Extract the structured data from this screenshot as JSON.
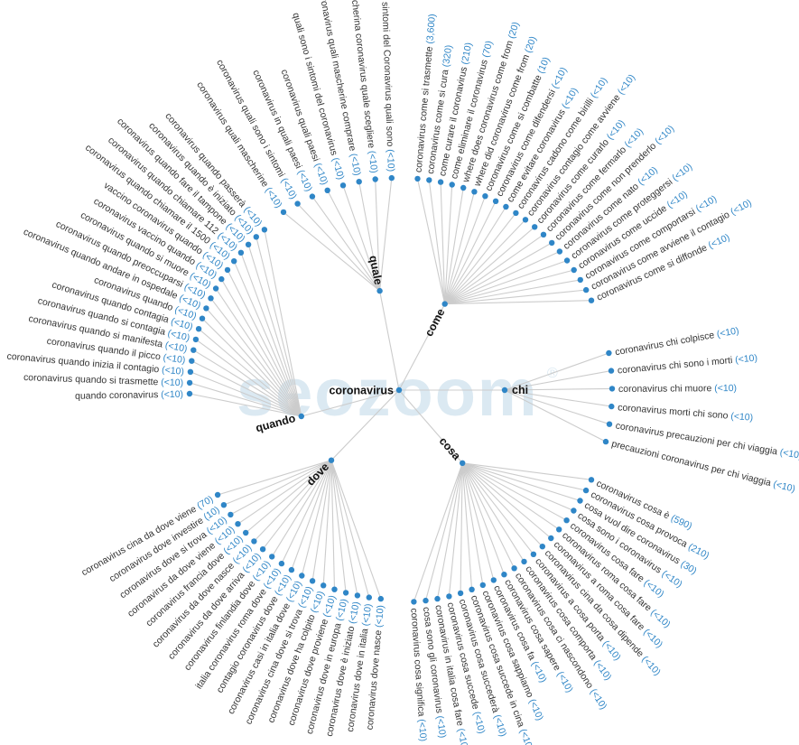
{
  "watermark": "seozoom",
  "watermark_mark": "®",
  "colors": {
    "link": "#cccccc",
    "node": "#2f86c7",
    "count": "#2f86c7",
    "text": "#333333"
  },
  "root": {
    "label": "coronavirus"
  },
  "branches": [
    {
      "key": "quale",
      "label": "quale",
      "leaves": [
        {
          "text": "i sintomi del Coronavirus quali sono",
          "count": "(<10)"
        },
        {
          "text": "mascherina coronavirus quale scegliere",
          "count": "(<10)"
        },
        {
          "text": "coronavirus quali mascherine comprare",
          "count": "(<10)"
        },
        {
          "text": "quali sono i sintomi del coronavirus",
          "count": "(<10)"
        },
        {
          "text": "coronavirus quali paesi",
          "count": "(<10)"
        },
        {
          "text": "coronavirus in quali paesi",
          "count": "(<10)"
        },
        {
          "text": "coronavirus quali sono i sintomi",
          "count": "(<10)"
        },
        {
          "text": "coronavirus quali mascherine",
          "count": "(<10)"
        }
      ]
    },
    {
      "key": "come",
      "label": "come",
      "leaves": [
        {
          "text": "coronavirus come si trasmette",
          "count": "(3,600)"
        },
        {
          "text": "coronavirus come si cura",
          "count": "(320)"
        },
        {
          "text": "come curare il coronavirus",
          "count": "(210)"
        },
        {
          "text": "come eliminare il coronavirus",
          "count": "(70)"
        },
        {
          "text": "where does coronavirus come from",
          "count": "(20)"
        },
        {
          "text": "where did coronavirus come from",
          "count": "(20)"
        },
        {
          "text": "coronavirus come si combatte",
          "count": "(10)"
        },
        {
          "text": "coronavirus come difendersi",
          "count": "(<10)"
        },
        {
          "text": "come evitare coronavirus",
          "count": "(<10)"
        },
        {
          "text": "coronavirus cadono come birilli",
          "count": "(<10)"
        },
        {
          "text": "coronavirus contagio come avviene",
          "count": "(<10)"
        },
        {
          "text": "coronavirus come curarlo",
          "count": "(<10)"
        },
        {
          "text": "coronavirus come fermarlo",
          "count": "(<10)"
        },
        {
          "text": "coronavirus come non prenderlo",
          "count": "(<10)"
        },
        {
          "text": "coronavirus come nato",
          "count": "(<10)"
        },
        {
          "text": "coronavirus come proteggersi",
          "count": "(<10)"
        },
        {
          "text": "coronavirus come uccide",
          "count": "(<10)"
        },
        {
          "text": "coronavirus come comportarsi",
          "count": "(<10)"
        },
        {
          "text": "coronavirus come avviene il contagio",
          "count": "(<10)"
        },
        {
          "text": "coronavirus come si diffonde",
          "count": "(<10)"
        }
      ]
    },
    {
      "key": "chi",
      "label": "chi",
      "leaves": [
        {
          "text": "coronavirus chi colpisce",
          "count": "(<10)"
        },
        {
          "text": "coronavirus chi sono i morti",
          "count": "(<10)"
        },
        {
          "text": "coronavirus chi muore",
          "count": "(<10)"
        },
        {
          "text": "coronavirus morti chi sono",
          "count": "(<10)"
        },
        {
          "text": "coronavirus precauzioni per chi viaggia",
          "count": "(<10)"
        },
        {
          "text": "precauzioni coronavirus per chi viaggia",
          "count": "(<10)"
        }
      ]
    },
    {
      "key": "cosa",
      "label": "cosa",
      "leaves": [
        {
          "text": "coronavirus cosa è",
          "count": "(590)"
        },
        {
          "text": "coronavirus cosa provoca",
          "count": "(210)"
        },
        {
          "text": "cosa vuol dire coronavirus",
          "count": "(30)"
        },
        {
          "text": "cosa sono i coronavirus",
          "count": "(<10)"
        },
        {
          "text": "coronavirus cosa fare",
          "count": "(<10)"
        },
        {
          "text": "coronavirus roma cosa fare",
          "count": "(<10)"
        },
        {
          "text": "coronavirus a roma cosa fare",
          "count": "(<10)"
        },
        {
          "text": "coronavirus cina da cosa dipende",
          "count": "(<10)"
        },
        {
          "text": "coronavirus a cosa porta",
          "count": "(<10)"
        },
        {
          "text": "coronavirus cosa comporta",
          "count": "(<10)"
        },
        {
          "text": "coronavirus cosa ci nascondono",
          "count": "(<10)"
        },
        {
          "text": "coronavirus cosa sapere",
          "count": "(<10)"
        },
        {
          "text": "coronavirus cosa fa",
          "count": "(<10)"
        },
        {
          "text": "coronavirus cosa sappiamo",
          "count": "(<10)"
        },
        {
          "text": "coronavirus cosa succede in cina",
          "count": "(<10)"
        },
        {
          "text": "coronavirus cosa succederà",
          "count": "(<10)"
        },
        {
          "text": "coronavirus cosa succede",
          "count": "(<10)"
        },
        {
          "text": "coronavirus in italia cosa fare",
          "count": "(<10)"
        },
        {
          "text": "cosa sono gli coronavirus",
          "count": "(<10)"
        },
        {
          "text": "coronavirus cosa significa",
          "count": "(<10)"
        }
      ]
    },
    {
      "key": "dove",
      "label": "dove",
      "leaves": [
        {
          "text": "coronavirus dove nasce",
          "count": "(<10)"
        },
        {
          "text": "coronavirus dove in italia",
          "count": "(<10)"
        },
        {
          "text": "coronavirus dove è iniziato",
          "count": "(<10)"
        },
        {
          "text": "coronavirus dove in europa",
          "count": "(<10)"
        },
        {
          "text": "coronavirus dove proviene",
          "count": "(<10)"
        },
        {
          "text": "coronavirus dove ha colpito",
          "count": "(<10)"
        },
        {
          "text": "coronavirus cina dove si trova",
          "count": "(<10)"
        },
        {
          "text": "coronavirus casi in italia dove",
          "count": "(<10)"
        },
        {
          "text": "contagio coronavirus dove",
          "count": "(<10)"
        },
        {
          "text": "italia coronavirus roma dove",
          "count": "(<10)"
        },
        {
          "text": "coronavirus finlandia dove",
          "count": "(<10)"
        },
        {
          "text": "coronavirus da dove arriva",
          "count": "(<10)"
        },
        {
          "text": "coronavirus da dove nasce",
          "count": "(<10)"
        },
        {
          "text": "coronavirus francia dove",
          "count": "(<10)"
        },
        {
          "text": "coronavirus da dove viene",
          "count": "(<10)"
        },
        {
          "text": "coronavirus dove si trova",
          "count": "(<10)"
        },
        {
          "text": "coronavirus dove investire",
          "count": "(10)"
        },
        {
          "text": "coronavirus cina da dove viene",
          "count": "(70)"
        }
      ]
    },
    {
      "key": "quando",
      "label": "quando",
      "leaves": [
        {
          "text": "coronavirus quando passerà",
          "count": "(<10)"
        },
        {
          "text": "coronavirus quando è iniziato",
          "count": "(<10)"
        },
        {
          "text": "coronavirus quando fare il tampone",
          "count": "(<10)"
        },
        {
          "text": "coronavirus quando chiamare 112",
          "count": "(<10)"
        },
        {
          "text": "coronavirus quando chiamare il 1500",
          "count": "(<10)"
        },
        {
          "text": "vaccino coronavirus quando",
          "count": "(<10)"
        },
        {
          "text": "coronavirus vaccino quando",
          "count": "(<10)"
        },
        {
          "text": "coronavirus quando si muore",
          "count": "(<10)"
        },
        {
          "text": "coronavirus quando preoccuparsi",
          "count": "(<10)"
        },
        {
          "text": "coronavirus quando andare in ospedale",
          "count": "(<10)"
        },
        {
          "text": "coronavirus quando",
          "count": "(<10)"
        },
        {
          "text": "coronavirus quando contagia",
          "count": "(<10)"
        },
        {
          "text": "coronavirus quando si contagia",
          "count": "(<10)"
        },
        {
          "text": "coronavirus quando si manifesta",
          "count": "(<10)"
        },
        {
          "text": "coronavirus quando il picco",
          "count": "(<10)"
        },
        {
          "text": "coronavirus quando inizia il contagio",
          "count": "(<10)"
        },
        {
          "text": "coronavirus quando si trasmette",
          "count": "(<10)"
        },
        {
          "text": "quando coronavirus",
          "count": "(<10)"
        }
      ]
    }
  ]
}
